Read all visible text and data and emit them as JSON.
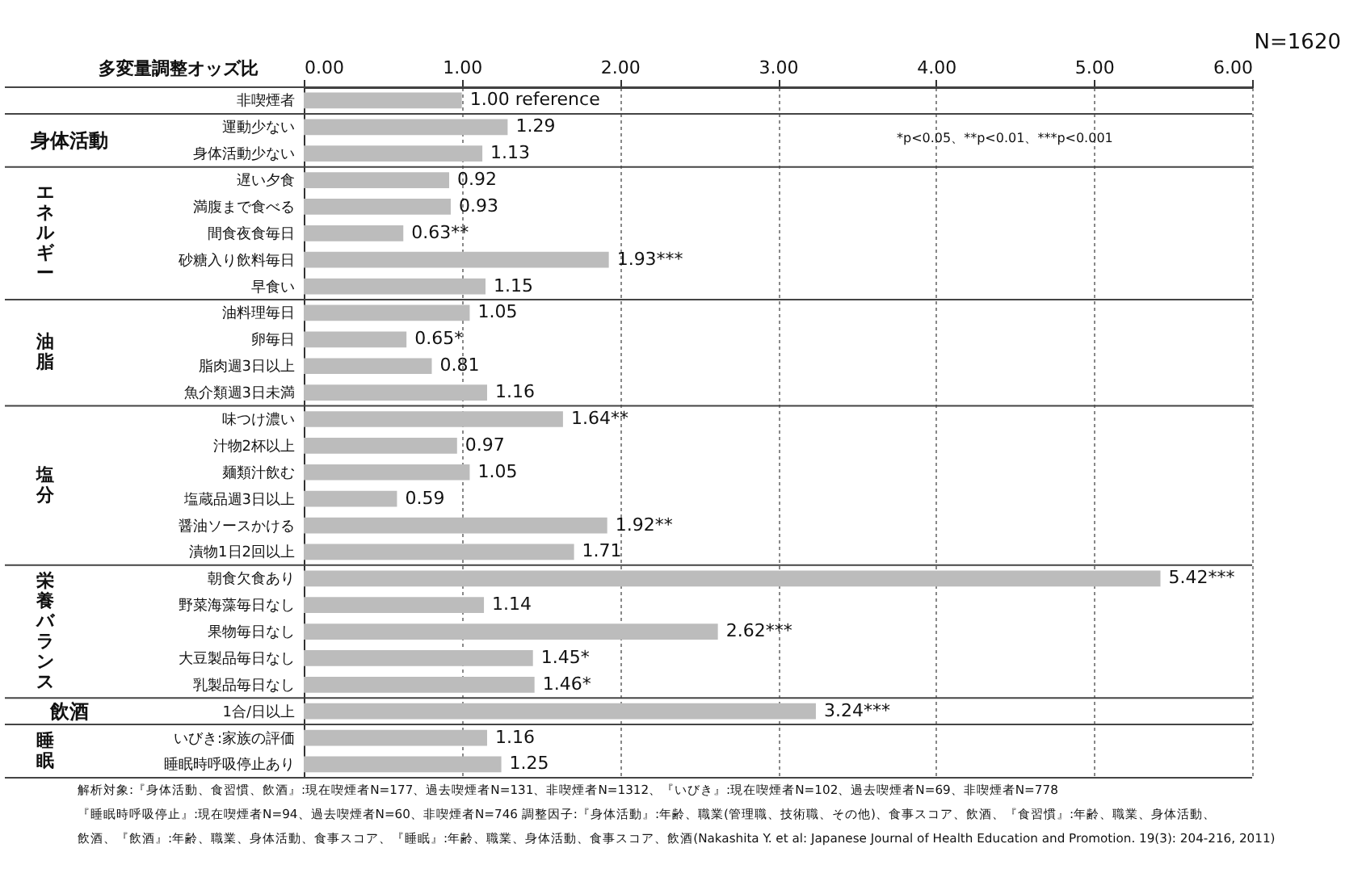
{
  "chart_data": {
    "type": "bar",
    "orientation": "horizontal",
    "title": "多変量調整オッズ比",
    "categories": [
      "非喫煙者",
      "運動少ない",
      "身体活動少ない",
      "遅い夕食",
      "満腹まで食べる",
      "間食夜食毎日",
      "砂糖入り飲料毎日",
      "早食い",
      "油料理毎日",
      "卵毎日",
      "脂肉週3日以上",
      "魚介類週3日未満",
      "味つけ濃い",
      "汁物2杯以上",
      "麺類汁飲む",
      "塩蔵品週3日以上",
      "醤油ソースかける",
      "漬物1日2回以上",
      "朝食欠食あり",
      "野菜海藻毎日なし",
      "果物毎日なし",
      "大豆製品毎日なし",
      "乳製品毎日なし",
      "1合/日以上",
      "いびき:家族の評価",
      "睡眠時呼吸停止あり"
    ],
    "values": [
      1.0,
      1.29,
      1.13,
      0.92,
      0.93,
      0.63,
      1.93,
      1.15,
      1.05,
      0.65,
      0.81,
      1.16,
      1.64,
      0.97,
      1.05,
      0.59,
      1.92,
      1.71,
      5.42,
      1.14,
      2.62,
      1.45,
      1.46,
      3.24,
      1.16,
      1.25
    ],
    "value_labels": [
      "1.00 reference",
      "1.29",
      "1.13",
      "0.92",
      "0.93",
      "0.63**",
      "1.93***",
      "1.15",
      "1.05",
      "0.65*",
      "0.81",
      "1.16",
      "1.64**",
      "0.97",
      "1.05",
      "0.59",
      "1.92**",
      "1.71",
      "5.42***",
      "1.14",
      "2.62***",
      "1.45*",
      "1.46*",
      "3.24***",
      "1.16",
      "1.25"
    ],
    "color": "#bcbcbc",
    "xlim": [
      0,
      6
    ],
    "xticks": [
      {
        "value": 0,
        "label": "0.00"
      },
      {
        "value": 1,
        "label": "1.00"
      },
      {
        "value": 2,
        "label": "2.00"
      },
      {
        "value": 3,
        "label": "3.00"
      },
      {
        "value": 4,
        "label": "4.00"
      },
      {
        "value": 5,
        "label": "5.00"
      },
      {
        "value": 6,
        "label": "6.00"
      }
    ],
    "grid": "x",
    "annotations": [
      "N=1620",
      "*p<0.05、**p<0.01、***p<0.001",
      "解析対象:『身体活動、食習慣、飲酒』:現在喫煙者N=177、過去喫煙者N=131、非喫煙者N=1312、『いびき』:現在喫煙者N=102、過去喫煙者N=69、非喫煙者N=778",
      "『睡眠時呼吸停止』:現在喫煙者N=94、過去喫煙者N=60、非喫煙者N=746 調整因子:『身体活動』:年齢、職業(管理職、技術職、その他)、食事スコア、飲酒、『食習慣』:年齢、職業、身体活動、",
      "飲酒、『飲酒』:年齢、職業、身体活動、食事スコア、『睡眠』:年齢、職業、身体活動、食事スコア、飲酒(Nakashita Y. et al: Japanese Journal of Health Education and Promotion. 19(3): 204-216, 2011)",
      "身体活動",
      "エネルギー",
      "油脂",
      "塩分",
      "栄養バランス",
      "飲酒",
      "睡眠"
    ]
  }
}
